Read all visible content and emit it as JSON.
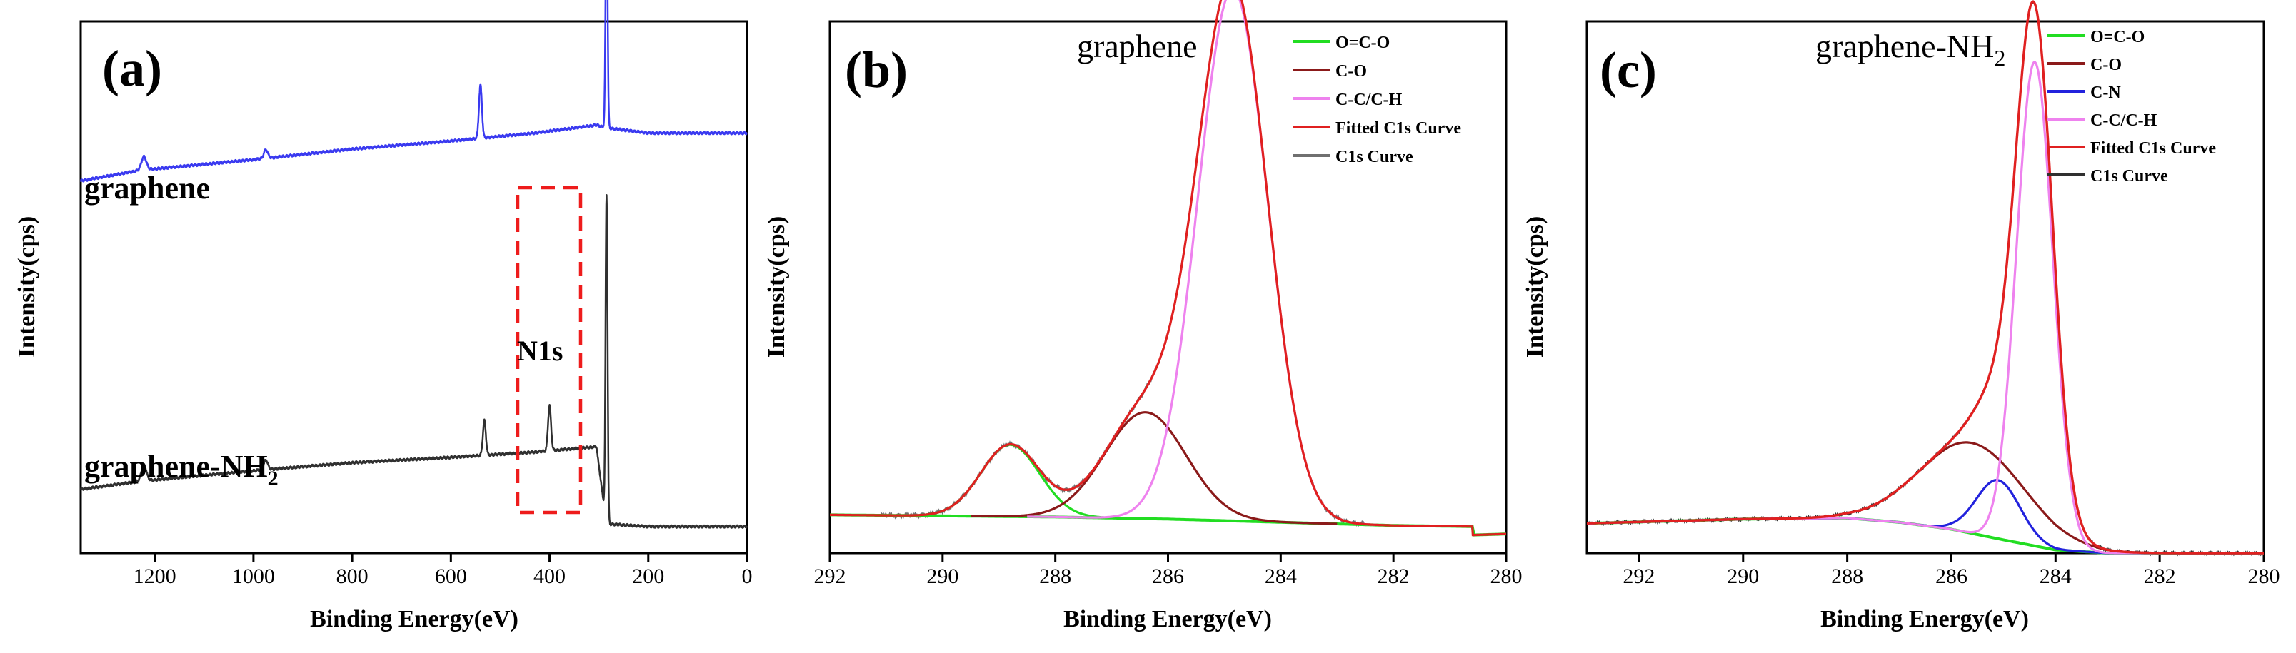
{
  "chart_data": [
    {
      "id": "a",
      "type": "line",
      "panel_label": "(a)",
      "xlabel": "Binding Energy(eV)",
      "ylabel": "Intensity(cps)",
      "xlim": [
        1350,
        0
      ],
      "xticks": [
        1200,
        1000,
        800,
        600,
        400,
        200,
        0
      ],
      "ylim": [
        0,
        100
      ],
      "y_ticks_shown": false,
      "annotation": {
        "text": "N1s",
        "region_ev": [
          470,
          340
        ],
        "style": "red dashed box"
      },
      "series": [
        {
          "name": "graphene",
          "color": "#3a3af0",
          "label": "graphene",
          "baseline": [
            [
              1350,
              70
            ],
            [
              1230,
              72
            ],
            [
              1000,
              74
            ],
            [
              800,
              76
            ],
            [
              600,
              77.5
            ],
            [
              430,
              79
            ],
            [
              305,
              80.5
            ],
            [
              285,
              80
            ],
            [
              200,
              79
            ],
            [
              0,
              79
            ]
          ],
          "peaks": [
            [
              1222,
              2.5,
              5
            ],
            [
              975,
              1.6,
              4
            ],
            [
              540,
              10,
              3
            ],
            [
              400,
              0,
              3
            ],
            [
              284.5,
              44,
              2
            ]
          ]
        },
        {
          "name": "graphene-NH2",
          "color": "#303030",
          "label": "graphene-NH2",
          "baseline": [
            [
              1350,
              12
            ],
            [
              1230,
              13.5
            ],
            [
              1000,
              15.5
            ],
            [
              800,
              17
            ],
            [
              600,
              18
            ],
            [
              430,
              19
            ],
            [
              305,
              20
            ],
            [
              285,
              5.5
            ],
            [
              200,
              5
            ],
            [
              0,
              5
            ]
          ],
          "peaks": [
            [
              1222,
              3,
              5
            ],
            [
              975,
              1.8,
              4
            ],
            [
              532,
              6.5,
              3
            ],
            [
              400,
              8.5,
              3
            ],
            [
              284.5,
              62,
              2
            ]
          ]
        }
      ]
    },
    {
      "id": "b",
      "type": "line",
      "panel_label": "(b)",
      "title": "graphene",
      "xlabel": "Binding Energy(eV)",
      "ylabel": "Intensity(cps)",
      "xlim": [
        292,
        280
      ],
      "xticks": [
        292,
        290,
        288,
        286,
        284,
        282,
        280
      ],
      "ylim": [
        0,
        100
      ],
      "y_ticks_shown": false,
      "legend_position": "top-right",
      "series": [
        {
          "name": "O=C-O",
          "color": "#22dd22",
          "kind": "peak",
          "center": 288.8,
          "height": 13.5,
          "sigma": 0.52,
          "baseline": "graphene_bg"
        },
        {
          "name": "C-O",
          "color": "#8b1a1a",
          "kind": "peak",
          "center": 286.4,
          "height": 20,
          "sigma": 0.72,
          "baseline": "graphene_bg"
        },
        {
          "name": "C-C/C-H",
          "color": "#ee82ee",
          "kind": "peak",
          "center": 284.85,
          "height": 100,
          "sigma": 0.62,
          "baseline": "graphene_bg"
        },
        {
          "name": "Fitted C1s Curve",
          "color": "#e02020",
          "kind": "sum"
        },
        {
          "name": "C1s Curve",
          "color": "#707070",
          "kind": "measured"
        }
      ],
      "background": {
        "name": "graphene_bg",
        "points": [
          [
            292,
            7.2
          ],
          [
            290,
            7
          ],
          [
            288,
            6.8
          ],
          [
            286,
            6.4
          ],
          [
            284,
            5.8
          ],
          [
            282,
            5.2
          ],
          [
            280.6,
            5
          ],
          [
            280.6,
            3.4
          ],
          [
            280,
            3.6
          ]
        ]
      }
    },
    {
      "id": "c",
      "type": "line",
      "panel_label": "(c)",
      "title_main": "graphene-NH",
      "title_sub": "2",
      "xlabel": "Binding Energy(eV)",
      "ylabel": "Intensity(cps)",
      "xlim": [
        293,
        280
      ],
      "xticks": [
        292,
        290,
        288,
        286,
        284,
        282,
        280
      ],
      "ylim": [
        0,
        100
      ],
      "y_ticks_shown": false,
      "legend_position": "top-right",
      "series": [
        {
          "name": "O=C-O",
          "color": "#22dd22",
          "kind": "peak"
        },
        {
          "name": "C-O",
          "color": "#8b1a1a",
          "kind": "peak",
          "center": 285.6,
          "height": 17,
          "sigma": 1.0
        },
        {
          "name": "C-N",
          "color": "#2222dd",
          "kind": "peak",
          "center": 285.1,
          "height": 11,
          "sigma": 0.42
        },
        {
          "name": "C-C/C-H",
          "color": "#ee82ee",
          "kind": "peak",
          "center": 284.4,
          "height": 91,
          "sigma": 0.35
        },
        {
          "name": "Fitted C1s Curve",
          "color": "#e02020",
          "kind": "sum"
        },
        {
          "name": "C1s Curve",
          "color": "#303030",
          "kind": "measured"
        }
      ],
      "background": {
        "name": "nh2_bg",
        "points": [
          [
            293,
            5.6
          ],
          [
            290,
            6.4
          ],
          [
            288,
            6.6
          ],
          [
            287,
            5.8
          ],
          [
            286,
            4.5
          ],
          [
            285,
            2.5
          ],
          [
            284,
            0.6
          ],
          [
            283,
            0
          ],
          [
            280,
            0
          ]
        ]
      }
    }
  ],
  "labels": {
    "a": {
      "panel": "(a)",
      "graphene": "graphene",
      "nh2_main": "graphene-NH",
      "nh2_sub": "2",
      "n1s": "N1s",
      "xlabel": "Binding Energy(eV)",
      "ylabel": "Intensity(cps)"
    },
    "b": {
      "panel": "(b)",
      "title": "graphene",
      "xlabel": "Binding Energy(eV)",
      "ylabel": "Intensity(cps)"
    },
    "c": {
      "panel": "(c)",
      "title_main": "graphene-NH",
      "title_sub": "2",
      "xlabel": "Binding Energy(eV)",
      "ylabel": "Intensity(cps)"
    }
  }
}
